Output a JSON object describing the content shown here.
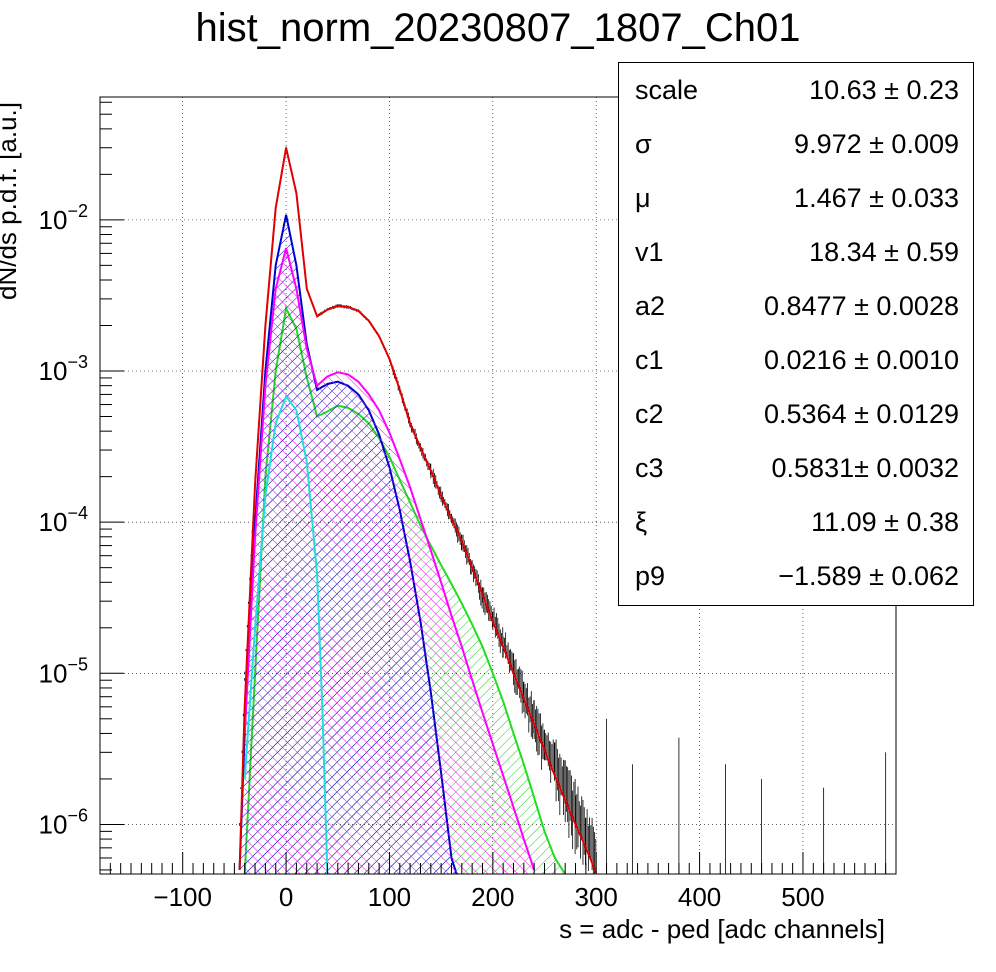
{
  "chart_data": {
    "type": "line",
    "title": "hist_norm_20230807_1807_Ch01",
    "xlabel": "s = adc - ped [adc channels]",
    "ylabel": "dN/ds p.d.f. [a.u.]",
    "xlim": [
      -180,
      590
    ],
    "ylim": [
      4.7e-07,
      0.065
    ],
    "y_scale": "log",
    "grid": true,
    "x_ticks": [
      -100,
      0,
      100,
      200,
      300,
      400,
      500
    ],
    "x_tick_labels": [
      "−100",
      "0",
      "100",
      "200",
      "300",
      "400",
      "500"
    ],
    "y_ticks": [
      {
        "value": 0.01,
        "base": "10",
        "exp": "−2"
      },
      {
        "value": 0.001,
        "base": "10",
        "exp": "−3"
      },
      {
        "value": 0.0001,
        "base": "10",
        "exp": "−4"
      },
      {
        "value": 1e-05,
        "base": "10",
        "exp": "−5"
      },
      {
        "value": 1e-06,
        "base": "10",
        "exp": "−6"
      }
    ],
    "series": [
      {
        "color": "#000000",
        "style": "histogram-with-errors",
        "points": [
          [
            -45,
            1e-06
          ],
          [
            -40,
            1e-05
          ],
          [
            -30,
            0.0002
          ],
          [
            -20,
            0.002
          ],
          [
            -10,
            0.012
          ],
          [
            0,
            0.03
          ],
          [
            10,
            0.015
          ],
          [
            20,
            0.0035
          ],
          [
            30,
            0.0023
          ],
          [
            40,
            0.00255
          ],
          [
            50,
            0.0027
          ],
          [
            60,
            0.00265
          ],
          [
            70,
            0.0025
          ],
          [
            80,
            0.00215
          ],
          [
            90,
            0.0017
          ],
          [
            100,
            0.0012
          ],
          [
            110,
            0.00075
          ],
          [
            120,
            0.00045
          ],
          [
            130,
            0.00031
          ],
          [
            140,
            0.00022
          ],
          [
            150,
            0.00015
          ],
          [
            160,
            0.000105
          ],
          [
            170,
            7.5e-05
          ],
          [
            180,
            5e-05
          ],
          [
            190,
            3.3e-05
          ],
          [
            200,
            2.3e-05
          ],
          [
            210,
            1.6e-05
          ],
          [
            220,
            1.1e-05
          ],
          [
            230,
            7.5e-06
          ],
          [
            240,
            5e-06
          ],
          [
            250,
            3.5e-06
          ],
          [
            260,
            2.6e-06
          ],
          [
            270,
            1.8e-06
          ],
          [
            280,
            1.3e-06
          ],
          [
            290,
            9e-07
          ],
          [
            300,
            6.5e-07
          ]
        ]
      },
      {
        "color": "#e00000",
        "style": "line",
        "points": [
          [
            -45,
            5e-07
          ],
          [
            -40,
            6e-06
          ],
          [
            -30,
            0.00018
          ],
          [
            -20,
            0.002
          ],
          [
            -10,
            0.012
          ],
          [
            0,
            0.03
          ],
          [
            10,
            0.015
          ],
          [
            20,
            0.0035
          ],
          [
            30,
            0.0023
          ],
          [
            40,
            0.00255
          ],
          [
            50,
            0.0027
          ],
          [
            60,
            0.00265
          ],
          [
            70,
            0.0025
          ],
          [
            80,
            0.00215
          ],
          [
            90,
            0.0017
          ],
          [
            100,
            0.0012
          ],
          [
            110,
            0.00075
          ],
          [
            120,
            0.00045
          ],
          [
            130,
            0.00031
          ],
          [
            140,
            0.00022
          ],
          [
            150,
            0.00015
          ],
          [
            160,
            0.000105
          ],
          [
            170,
            7.5e-05
          ],
          [
            180,
            5e-05
          ],
          [
            190,
            3.3e-05
          ],
          [
            200,
            2.2e-05
          ],
          [
            210,
            1.5e-05
          ],
          [
            220,
            1e-05
          ],
          [
            230,
            6.8e-06
          ],
          [
            240,
            4.6e-06
          ],
          [
            250,
            3.1e-06
          ],
          [
            260,
            2.1e-06
          ],
          [
            270,
            1.45e-06
          ],
          [
            280,
            1e-06
          ],
          [
            290,
            7e-07
          ],
          [
            300,
            4.8e-07
          ]
        ]
      },
      {
        "color": "#0000cc",
        "style": "hatched",
        "points": [
          [
            -45,
            5e-07
          ],
          [
            -40,
            4e-06
          ],
          [
            -30,
            0.0001
          ],
          [
            -20,
            0.001
          ],
          [
            -10,
            0.005
          ],
          [
            0,
            0.0108
          ],
          [
            10,
            0.005
          ],
          [
            20,
            0.0015
          ],
          [
            30,
            0.00075
          ],
          [
            40,
            0.00082
          ],
          [
            50,
            0.00085
          ],
          [
            60,
            0.0008
          ],
          [
            70,
            0.0007
          ],
          [
            80,
            0.00055
          ],
          [
            90,
            0.00038
          ],
          [
            100,
            0.00023
          ],
          [
            110,
            0.00012
          ],
          [
            120,
            5.5e-05
          ],
          [
            130,
            2.2e-05
          ],
          [
            140,
            7.5e-06
          ],
          [
            150,
            2.2e-06
          ],
          [
            160,
            6e-07
          ],
          [
            165,
            4.7e-07
          ]
        ]
      },
      {
        "color": "#ff00ff",
        "style": "hatched",
        "points": [
          [
            -40,
            4e-06
          ],
          [
            -30,
            8e-05
          ],
          [
            -20,
            0.0008
          ],
          [
            -10,
            0.0035
          ],
          [
            0,
            0.0065
          ],
          [
            10,
            0.0035
          ],
          [
            20,
            0.0014
          ],
          [
            30,
            0.0008
          ],
          [
            40,
            0.00092
          ],
          [
            50,
            0.00098
          ],
          [
            60,
            0.00095
          ],
          [
            70,
            0.00085
          ],
          [
            80,
            0.0007
          ],
          [
            90,
            0.00055
          ],
          [
            100,
            0.00039
          ],
          [
            110,
            0.00026
          ],
          [
            120,
            0.00017
          ],
          [
            130,
            0.000105
          ],
          [
            140,
            6.5e-05
          ],
          [
            150,
            4e-05
          ],
          [
            160,
            2.4e-05
          ],
          [
            170,
            1.5e-05
          ],
          [
            180,
            9e-06
          ],
          [
            190,
            5.5e-06
          ],
          [
            200,
            3.4e-06
          ],
          [
            210,
            2.1e-06
          ],
          [
            220,
            1.3e-06
          ],
          [
            230,
            8e-07
          ],
          [
            240,
            5e-07
          ]
        ]
      },
      {
        "color": "#22dd22",
        "style": "hatched",
        "points": [
          [
            -40,
            4.7e-07
          ],
          [
            -30,
            1e-05
          ],
          [
            -20,
            0.0002
          ],
          [
            -10,
            0.001
          ],
          [
            0,
            0.0026
          ],
          [
            10,
            0.0019
          ],
          [
            20,
            0.0009
          ],
          [
            30,
            0.0005
          ],
          [
            40,
            0.00054
          ],
          [
            50,
            0.00059
          ],
          [
            60,
            0.00057
          ],
          [
            70,
            0.00052
          ],
          [
            80,
            0.00045
          ],
          [
            90,
            0.00036
          ],
          [
            100,
            0.00027
          ],
          [
            110,
            0.00019
          ],
          [
            120,
            0.000135
          ],
          [
            130,
            9.5e-05
          ],
          [
            140,
            7e-05
          ],
          [
            150,
            5.2e-05
          ],
          [
            160,
            3.9e-05
          ],
          [
            170,
            2.9e-05
          ],
          [
            180,
            2.1e-05
          ],
          [
            190,
            1.5e-05
          ],
          [
            200,
            1e-05
          ],
          [
            210,
            6.5e-06
          ],
          [
            220,
            4e-06
          ],
          [
            230,
            2.5e-06
          ],
          [
            240,
            1.5e-06
          ],
          [
            250,
            9e-07
          ],
          [
            260,
            6e-07
          ],
          [
            270,
            4.7e-07
          ]
        ]
      },
      {
        "color": "#22dddd",
        "style": "line",
        "points": [
          [
            -40,
            2e-06
          ],
          [
            -30,
            2e-05
          ],
          [
            -20,
            0.00015
          ],
          [
            -10,
            0.00045
          ],
          [
            0,
            0.00068
          ],
          [
            10,
            0.00055
          ],
          [
            20,
            0.00025
          ],
          [
            30,
            4.5e-05
          ],
          [
            35,
            6e-06
          ],
          [
            40,
            4.7e-07
          ]
        ]
      }
    ]
  },
  "stats": {
    "rows": [
      {
        "name": "scale",
        "value": "10.63 ± 0.23"
      },
      {
        "name": "σ",
        "value": "9.972 ± 0.009"
      },
      {
        "name": "μ",
        "value": "1.467 ± 0.033"
      },
      {
        "name": "v1",
        "value": "18.34 ± 0.59"
      },
      {
        "name": "a2",
        "value": "0.8477 ± 0.0028"
      },
      {
        "name": "c1",
        "value": "0.0216 ± 0.0010"
      },
      {
        "name": "c2",
        "value": "0.5364 ± 0.0129"
      },
      {
        "name": "c3",
        "value": "0.5831± 0.0032"
      },
      {
        "name": "ξ",
        "value": "11.09 ± 0.38"
      },
      {
        "name": "p9",
        "value": "−1.589 ± 0.062"
      }
    ]
  }
}
